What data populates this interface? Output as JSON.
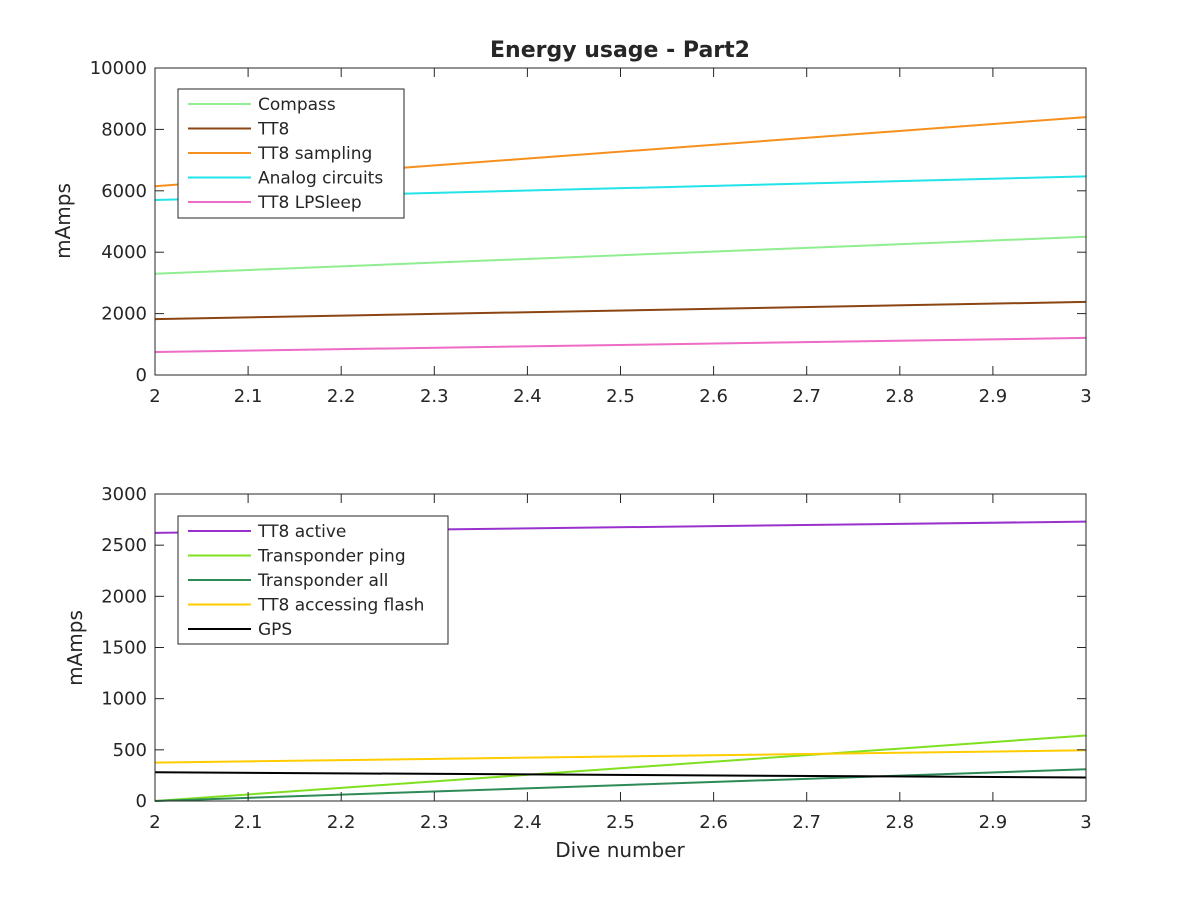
{
  "chart_data": [
    {
      "type": "line",
      "title": "Energy usage - Part2",
      "xlabel": "",
      "ylabel": "mAmps",
      "xlim": [
        2,
        3
      ],
      "ylim": [
        0,
        10000
      ],
      "xticks": [
        "2",
        "2.1",
        "2.2",
        "2.3",
        "2.4",
        "2.5",
        "2.6",
        "2.7",
        "2.8",
        "2.9",
        "3"
      ],
      "yticks": [
        "0",
        "2000",
        "4000",
        "6000",
        "8000",
        "10000"
      ],
      "legend_position": "top-left",
      "grid": false,
      "series": [
        {
          "name": "Compass",
          "color": "#90EE90",
          "x": [
            2,
            3
          ],
          "y": [
            3300,
            4500
          ]
        },
        {
          "name": "TT8",
          "color": "#8B4513",
          "x": [
            2,
            3
          ],
          "y": [
            1820,
            2380
          ]
        },
        {
          "name": "TT8 sampling",
          "color": "#F5901E",
          "x": [
            2,
            3
          ],
          "y": [
            6150,
            8400
          ]
        },
        {
          "name": "Analog circuits",
          "color": "#22E3E8",
          "x": [
            2,
            3
          ],
          "y": [
            5700,
            6470
          ]
        },
        {
          "name": "TT8 LPSleep",
          "color": "#EE6BC6",
          "x": [
            2,
            3
          ],
          "y": [
            750,
            1210
          ]
        }
      ]
    },
    {
      "type": "line",
      "title": "",
      "xlabel": "Dive number",
      "ylabel": "mAmps",
      "xlim": [
        2,
        3
      ],
      "ylim": [
        0,
        3000
      ],
      "xticks": [
        "2",
        "2.1",
        "2.2",
        "2.3",
        "2.4",
        "2.5",
        "2.6",
        "2.7",
        "2.8",
        "2.9",
        "3"
      ],
      "yticks": [
        "0",
        "500",
        "1000",
        "1500",
        "2000",
        "2500",
        "3000"
      ],
      "legend_position": "top-left",
      "grid": false,
      "series": [
        {
          "name": "TT8 active",
          "color": "#9932CC",
          "x": [
            2,
            3
          ],
          "y": [
            2620,
            2730
          ]
        },
        {
          "name": "Transponder ping",
          "color": "#7FE01F",
          "x": [
            2,
            3
          ],
          "y": [
            0,
            640
          ]
        },
        {
          "name": "Transponder all",
          "color": "#2E8B57",
          "x": [
            2,
            3
          ],
          "y": [
            0,
            310
          ]
        },
        {
          "name": "TT8 accessing flash",
          "color": "#FFCC00",
          "x": [
            2,
            3
          ],
          "y": [
            375,
            495
          ]
        },
        {
          "name": "GPS",
          "color": "#000000",
          "x": [
            2,
            3
          ],
          "y": [
            280,
            230
          ]
        }
      ]
    }
  ]
}
